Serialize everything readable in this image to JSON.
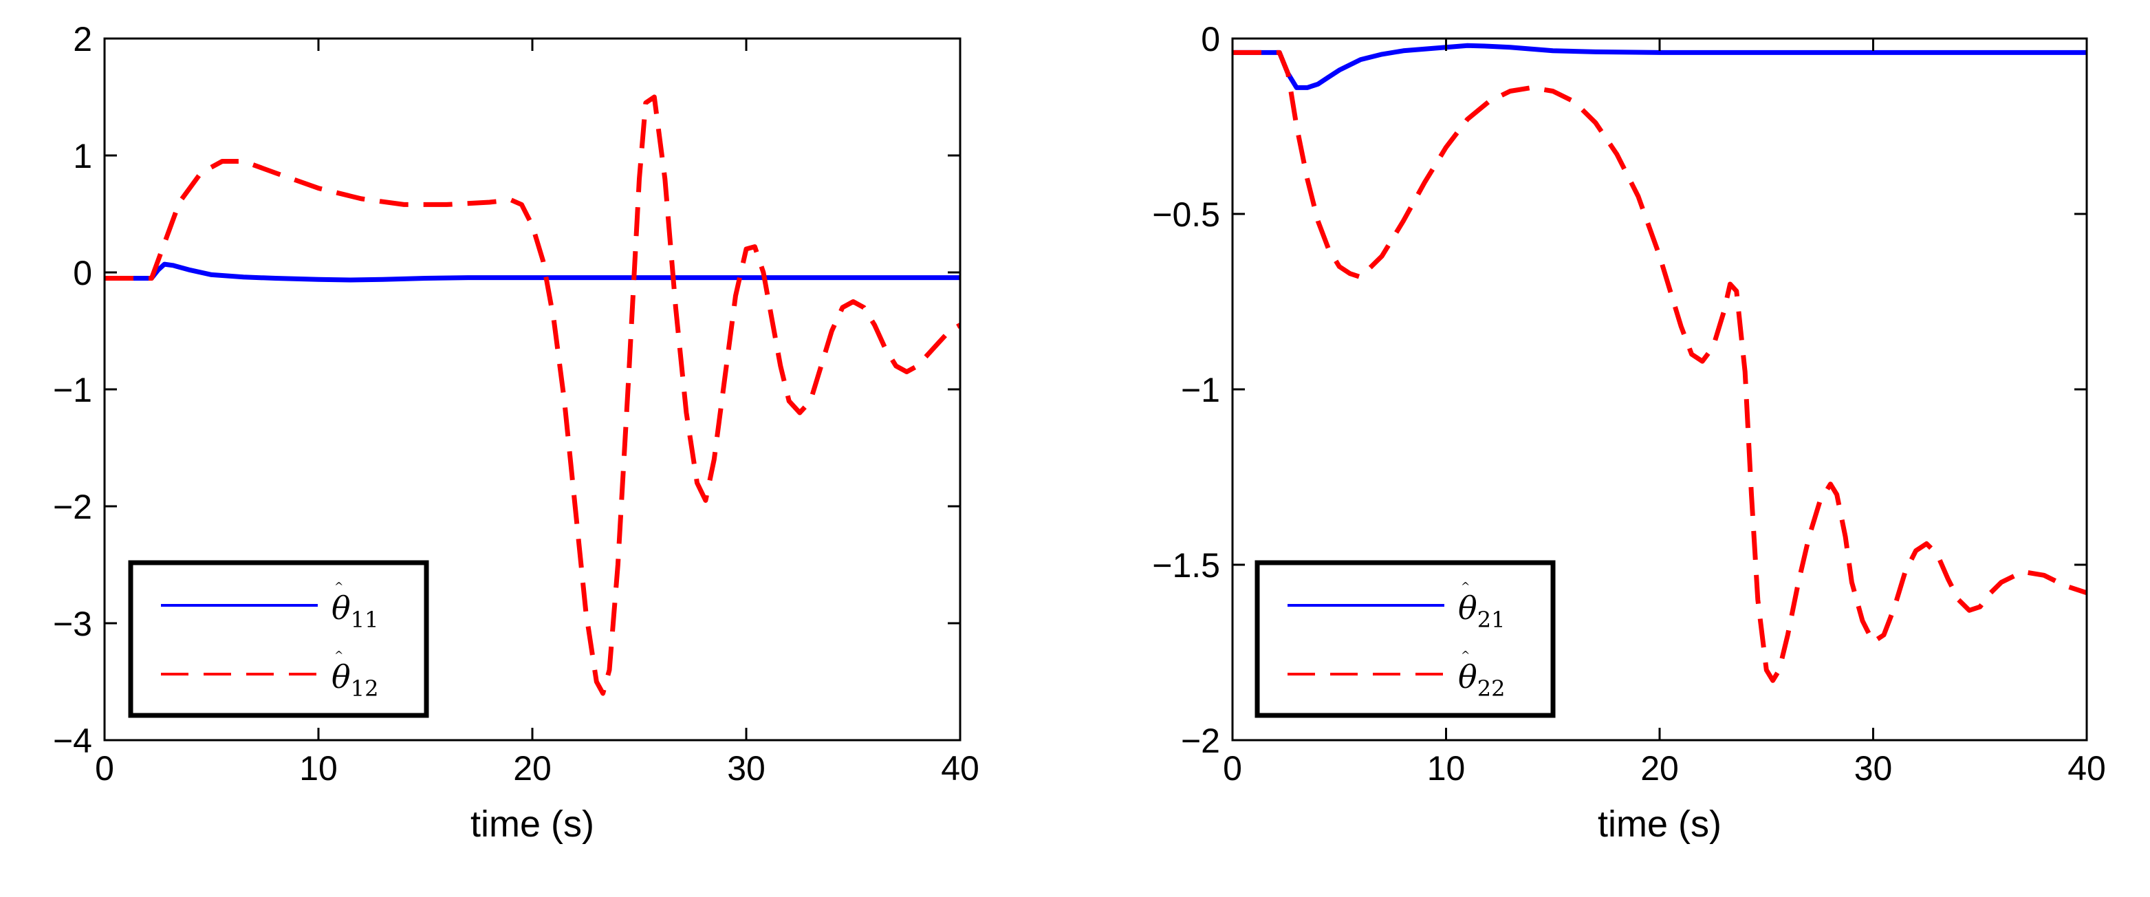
{
  "chart_data": [
    {
      "type": "line",
      "title": "",
      "xlabel": "time (s)",
      "ylabel": "",
      "xlim": [
        0,
        40
      ],
      "ylim": [
        -4,
        2
      ],
      "xticks": [
        0,
        10,
        20,
        30,
        40
      ],
      "yticks": [
        -4,
        -3,
        -2,
        -1,
        0,
        1,
        2
      ],
      "xtick_labels": [
        "0",
        "10",
        "20",
        "30",
        "40"
      ],
      "ytick_labels": [
        "−4",
        "−3",
        "−2",
        "−1",
        "0",
        "1",
        "2"
      ],
      "legend_position": "bottom-left",
      "series": [
        {
          "name": "θ̂₁₁",
          "legend_base": "θ",
          "legend_sub": "11",
          "color": "#0000ff",
          "style": "solid",
          "x": [
            0,
            2.2,
            2.5,
            2.8,
            3.2,
            4,
            5,
            6.5,
            8,
            10,
            11.5,
            13,
            15,
            17,
            20,
            25,
            30,
            35,
            40
          ],
          "y": [
            -0.05,
            -0.05,
            0.02,
            0.07,
            0.06,
            0.02,
            -0.02,
            -0.04,
            -0.05,
            -0.06,
            -0.065,
            -0.06,
            -0.05,
            -0.045,
            -0.045,
            -0.045,
            -0.045,
            -0.045,
            -0.045
          ]
        },
        {
          "name": "θ̂₁₂",
          "legend_base": "θ",
          "legend_sub": "12",
          "color": "#ff0000",
          "style": "dashed",
          "x": [
            0,
            2.2,
            2.8,
            3.5,
            4.5,
            5.5,
            6.5,
            8,
            10,
            12,
            14,
            16,
            18,
            19,
            19.5,
            20,
            20.5,
            21,
            21.5,
            22,
            22.5,
            23,
            23.3,
            23.6,
            24,
            24.5,
            25,
            25.3,
            25.7,
            26.2,
            26.7,
            27.2,
            27.7,
            28.1,
            28.5,
            29,
            29.5,
            30,
            30.4,
            30.8,
            31.2,
            31.6,
            32,
            32.5,
            33,
            33.5,
            34,
            34.5,
            35,
            35.5,
            36,
            36.5,
            37,
            37.5,
            38,
            38.5,
            39,
            39.5,
            40
          ],
          "y": [
            -0.05,
            -0.05,
            0.25,
            0.6,
            0.85,
            0.95,
            0.95,
            0.85,
            0.72,
            0.63,
            0.58,
            0.58,
            0.6,
            0.62,
            0.58,
            0.4,
            0.1,
            -0.4,
            -1.1,
            -2.0,
            -2.9,
            -3.5,
            -3.6,
            -3.4,
            -2.5,
            -0.9,
            0.8,
            1.45,
            1.5,
            0.8,
            -0.3,
            -1.2,
            -1.8,
            -1.95,
            -1.6,
            -0.9,
            -0.2,
            0.2,
            0.22,
            0.0,
            -0.4,
            -0.8,
            -1.1,
            -1.2,
            -1.1,
            -0.8,
            -0.5,
            -0.3,
            -0.25,
            -0.3,
            -0.45,
            -0.65,
            -0.8,
            -0.85,
            -0.8,
            -0.7,
            -0.6,
            -0.5,
            -0.45
          ]
        }
      ]
    },
    {
      "type": "line",
      "title": "",
      "xlabel": "time (s)",
      "ylabel": "",
      "xlim": [
        0,
        40
      ],
      "ylim": [
        -2,
        0
      ],
      "xticks": [
        0,
        10,
        20,
        30,
        40
      ],
      "yticks": [
        -2,
        -1.5,
        -1,
        -0.5,
        0
      ],
      "xtick_labels": [
        "0",
        "10",
        "20",
        "30",
        "40"
      ],
      "ytick_labels": [
        "−2",
        "−1.5",
        "−1",
        "−0.5",
        "0"
      ],
      "legend_position": "bottom-left",
      "series": [
        {
          "name": "θ̂₂₁",
          "legend_base": "θ",
          "legend_sub": "21",
          "color": "#0000ff",
          "style": "solid",
          "x": [
            0,
            2.2,
            2.6,
            3.0,
            3.5,
            4,
            4.5,
            5,
            6,
            7,
            8,
            9,
            10,
            11,
            12,
            13,
            14,
            15,
            17,
            20,
            25,
            30,
            35,
            40
          ],
          "y": [
            -0.04,
            -0.04,
            -0.1,
            -0.14,
            -0.14,
            -0.13,
            -0.11,
            -0.09,
            -0.06,
            -0.045,
            -0.035,
            -0.03,
            -0.025,
            -0.02,
            -0.022,
            -0.025,
            -0.03,
            -0.035,
            -0.038,
            -0.04,
            -0.04,
            -0.04,
            -0.04,
            -0.04
          ]
        },
        {
          "name": "θ̂₂₂",
          "legend_base": "θ",
          "legend_sub": "22",
          "color": "#ff0000",
          "style": "dashed",
          "x": [
            0,
            2.2,
            2.6,
            3,
            3.5,
            4,
            4.5,
            5,
            5.5,
            6,
            7,
            8,
            9,
            10,
            11,
            12,
            13,
            14,
            15,
            16,
            17,
            18,
            19,
            20,
            20.5,
            21,
            21.5,
            22,
            22.5,
            23,
            23.3,
            23.6,
            24,
            24.3,
            24.6,
            25,
            25.3,
            25.6,
            26,
            26.5,
            27,
            27.5,
            28,
            28.3,
            28.7,
            29,
            29.5,
            30,
            30.5,
            31,
            31.5,
            32,
            32.5,
            33,
            33.5,
            34,
            34.5,
            35,
            35.5,
            36,
            37,
            38,
            39,
            40
          ],
          "y": [
            -0.04,
            -0.04,
            -0.1,
            -0.25,
            -0.4,
            -0.52,
            -0.6,
            -0.65,
            -0.67,
            -0.68,
            -0.62,
            -0.52,
            -0.41,
            -0.31,
            -0.23,
            -0.18,
            -0.15,
            -0.14,
            -0.15,
            -0.18,
            -0.24,
            -0.33,
            -0.45,
            -0.62,
            -0.72,
            -0.82,
            -0.9,
            -0.92,
            -0.88,
            -0.78,
            -0.7,
            -0.72,
            -0.95,
            -1.3,
            -1.6,
            -1.8,
            -1.83,
            -1.8,
            -1.7,
            -1.55,
            -1.42,
            -1.32,
            -1.27,
            -1.3,
            -1.42,
            -1.55,
            -1.66,
            -1.72,
            -1.7,
            -1.62,
            -1.52,
            -1.46,
            -1.44,
            -1.47,
            -1.54,
            -1.6,
            -1.63,
            -1.62,
            -1.58,
            -1.55,
            -1.52,
            -1.53,
            -1.56,
            -1.58
          ]
        }
      ]
    }
  ]
}
